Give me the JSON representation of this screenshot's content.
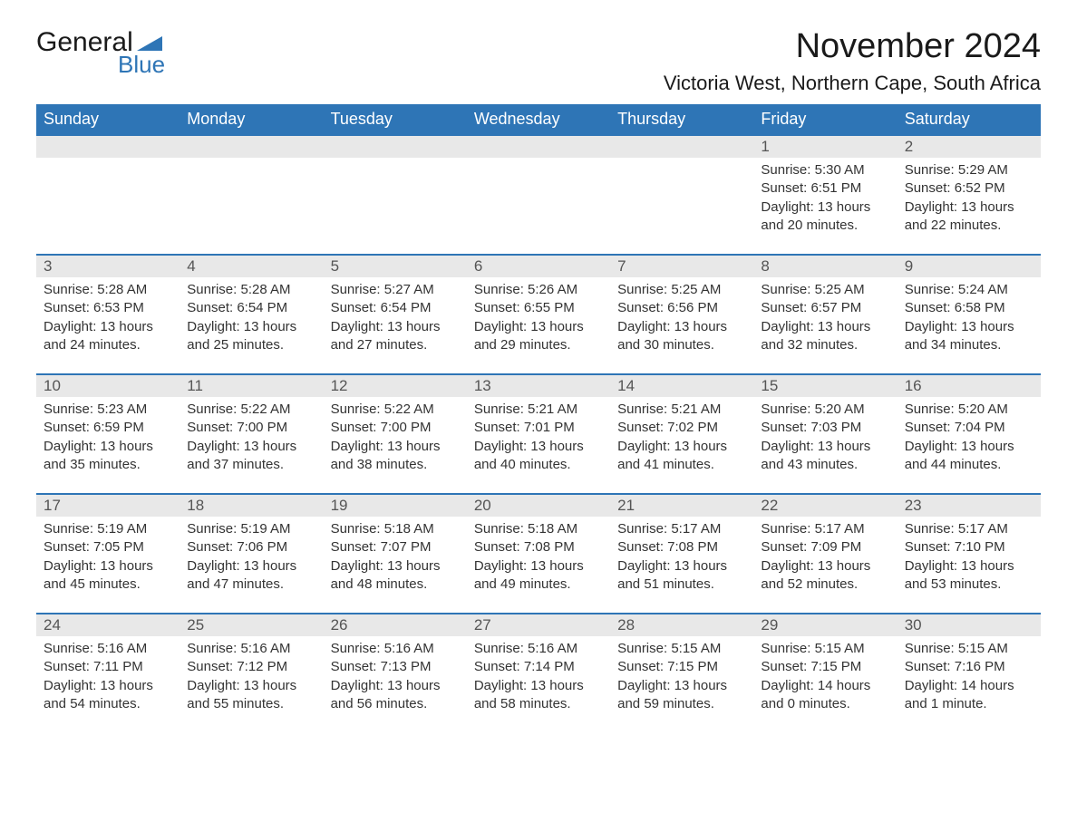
{
  "logo": {
    "main": "General",
    "sub": "Blue",
    "triangle_color": "#2e75b6"
  },
  "title": "November 2024",
  "location": "Victoria West, Northern Cape, South Africa",
  "colors": {
    "header_bg": "#2e75b6",
    "header_text": "#ffffff",
    "day_number_bg": "#e8e8e8",
    "body_text": "#333333",
    "border": "#2e75b6"
  },
  "day_headers": [
    "Sunday",
    "Monday",
    "Tuesday",
    "Wednesday",
    "Thursday",
    "Friday",
    "Saturday"
  ],
  "weeks": [
    [
      {
        "day": "",
        "sunrise": "",
        "sunset": "",
        "daylight": ""
      },
      {
        "day": "",
        "sunrise": "",
        "sunset": "",
        "daylight": ""
      },
      {
        "day": "",
        "sunrise": "",
        "sunset": "",
        "daylight": ""
      },
      {
        "day": "",
        "sunrise": "",
        "sunset": "",
        "daylight": ""
      },
      {
        "day": "",
        "sunrise": "",
        "sunset": "",
        "daylight": ""
      },
      {
        "day": "1",
        "sunrise": "Sunrise: 5:30 AM",
        "sunset": "Sunset: 6:51 PM",
        "daylight": "Daylight: 13 hours and 20 minutes."
      },
      {
        "day": "2",
        "sunrise": "Sunrise: 5:29 AM",
        "sunset": "Sunset: 6:52 PM",
        "daylight": "Daylight: 13 hours and 22 minutes."
      }
    ],
    [
      {
        "day": "3",
        "sunrise": "Sunrise: 5:28 AM",
        "sunset": "Sunset: 6:53 PM",
        "daylight": "Daylight: 13 hours and 24 minutes."
      },
      {
        "day": "4",
        "sunrise": "Sunrise: 5:28 AM",
        "sunset": "Sunset: 6:54 PM",
        "daylight": "Daylight: 13 hours and 25 minutes."
      },
      {
        "day": "5",
        "sunrise": "Sunrise: 5:27 AM",
        "sunset": "Sunset: 6:54 PM",
        "daylight": "Daylight: 13 hours and 27 minutes."
      },
      {
        "day": "6",
        "sunrise": "Sunrise: 5:26 AM",
        "sunset": "Sunset: 6:55 PM",
        "daylight": "Daylight: 13 hours and 29 minutes."
      },
      {
        "day": "7",
        "sunrise": "Sunrise: 5:25 AM",
        "sunset": "Sunset: 6:56 PM",
        "daylight": "Daylight: 13 hours and 30 minutes."
      },
      {
        "day": "8",
        "sunrise": "Sunrise: 5:25 AM",
        "sunset": "Sunset: 6:57 PM",
        "daylight": "Daylight: 13 hours and 32 minutes."
      },
      {
        "day": "9",
        "sunrise": "Sunrise: 5:24 AM",
        "sunset": "Sunset: 6:58 PM",
        "daylight": "Daylight: 13 hours and 34 minutes."
      }
    ],
    [
      {
        "day": "10",
        "sunrise": "Sunrise: 5:23 AM",
        "sunset": "Sunset: 6:59 PM",
        "daylight": "Daylight: 13 hours and 35 minutes."
      },
      {
        "day": "11",
        "sunrise": "Sunrise: 5:22 AM",
        "sunset": "Sunset: 7:00 PM",
        "daylight": "Daylight: 13 hours and 37 minutes."
      },
      {
        "day": "12",
        "sunrise": "Sunrise: 5:22 AM",
        "sunset": "Sunset: 7:00 PM",
        "daylight": "Daylight: 13 hours and 38 minutes."
      },
      {
        "day": "13",
        "sunrise": "Sunrise: 5:21 AM",
        "sunset": "Sunset: 7:01 PM",
        "daylight": "Daylight: 13 hours and 40 minutes."
      },
      {
        "day": "14",
        "sunrise": "Sunrise: 5:21 AM",
        "sunset": "Sunset: 7:02 PM",
        "daylight": "Daylight: 13 hours and 41 minutes."
      },
      {
        "day": "15",
        "sunrise": "Sunrise: 5:20 AM",
        "sunset": "Sunset: 7:03 PM",
        "daylight": "Daylight: 13 hours and 43 minutes."
      },
      {
        "day": "16",
        "sunrise": "Sunrise: 5:20 AM",
        "sunset": "Sunset: 7:04 PM",
        "daylight": "Daylight: 13 hours and 44 minutes."
      }
    ],
    [
      {
        "day": "17",
        "sunrise": "Sunrise: 5:19 AM",
        "sunset": "Sunset: 7:05 PM",
        "daylight": "Daylight: 13 hours and 45 minutes."
      },
      {
        "day": "18",
        "sunrise": "Sunrise: 5:19 AM",
        "sunset": "Sunset: 7:06 PM",
        "daylight": "Daylight: 13 hours and 47 minutes."
      },
      {
        "day": "19",
        "sunrise": "Sunrise: 5:18 AM",
        "sunset": "Sunset: 7:07 PM",
        "daylight": "Daylight: 13 hours and 48 minutes."
      },
      {
        "day": "20",
        "sunrise": "Sunrise: 5:18 AM",
        "sunset": "Sunset: 7:08 PM",
        "daylight": "Daylight: 13 hours and 49 minutes."
      },
      {
        "day": "21",
        "sunrise": "Sunrise: 5:17 AM",
        "sunset": "Sunset: 7:08 PM",
        "daylight": "Daylight: 13 hours and 51 minutes."
      },
      {
        "day": "22",
        "sunrise": "Sunrise: 5:17 AM",
        "sunset": "Sunset: 7:09 PM",
        "daylight": "Daylight: 13 hours and 52 minutes."
      },
      {
        "day": "23",
        "sunrise": "Sunrise: 5:17 AM",
        "sunset": "Sunset: 7:10 PM",
        "daylight": "Daylight: 13 hours and 53 minutes."
      }
    ],
    [
      {
        "day": "24",
        "sunrise": "Sunrise: 5:16 AM",
        "sunset": "Sunset: 7:11 PM",
        "daylight": "Daylight: 13 hours and 54 minutes."
      },
      {
        "day": "25",
        "sunrise": "Sunrise: 5:16 AM",
        "sunset": "Sunset: 7:12 PM",
        "daylight": "Daylight: 13 hours and 55 minutes."
      },
      {
        "day": "26",
        "sunrise": "Sunrise: 5:16 AM",
        "sunset": "Sunset: 7:13 PM",
        "daylight": "Daylight: 13 hours and 56 minutes."
      },
      {
        "day": "27",
        "sunrise": "Sunrise: 5:16 AM",
        "sunset": "Sunset: 7:14 PM",
        "daylight": "Daylight: 13 hours and 58 minutes."
      },
      {
        "day": "28",
        "sunrise": "Sunrise: 5:15 AM",
        "sunset": "Sunset: 7:15 PM",
        "daylight": "Daylight: 13 hours and 59 minutes."
      },
      {
        "day": "29",
        "sunrise": "Sunrise: 5:15 AM",
        "sunset": "Sunset: 7:15 PM",
        "daylight": "Daylight: 14 hours and 0 minutes."
      },
      {
        "day": "30",
        "sunrise": "Sunrise: 5:15 AM",
        "sunset": "Sunset: 7:16 PM",
        "daylight": "Daylight: 14 hours and 1 minute."
      }
    ]
  ]
}
